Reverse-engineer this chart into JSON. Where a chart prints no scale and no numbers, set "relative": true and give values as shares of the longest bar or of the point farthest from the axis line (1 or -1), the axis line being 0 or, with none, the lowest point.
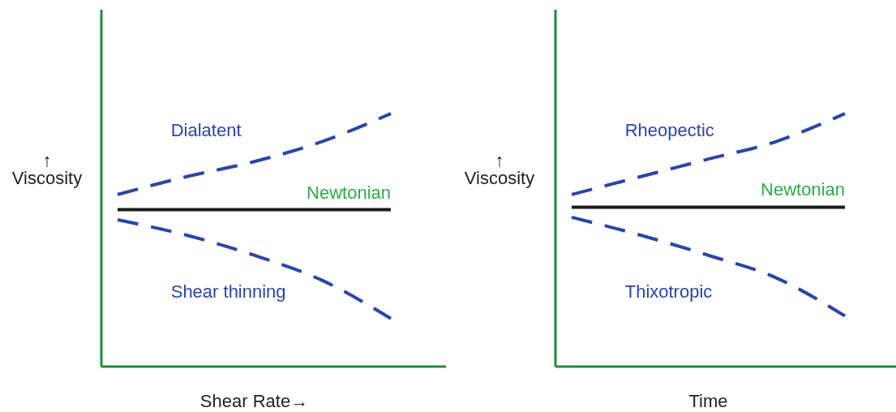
{
  "chart_data": [
    {
      "type": "line",
      "relative": true,
      "xlabel": "Shear Rate→",
      "ylabel": "↑\nViscosity",
      "categories": [
        null,
        null,
        null,
        null,
        null
      ],
      "series": [
        {
          "name": "Dialatent",
          "color": "#2b45a6",
          "line_style": "dashed",
          "values": [
            0.68,
            0.75,
            0.81,
            0.89,
            1
          ]
        },
        {
          "name": "Newtonian",
          "color": "#1a1a1a",
          "line_style": "solid",
          "values": [
            0.62,
            0.62,
            0.62,
            0.62,
            0.62
          ]
        },
        {
          "name": "Shear thinning",
          "color": "#2b45a6",
          "line_style": "dashed",
          "values": [
            0.58,
            0.52,
            0.44,
            0.34,
            0.19
          ]
        }
      ]
    },
    {
      "type": "line",
      "relative": true,
      "xlabel": "Time",
      "ylabel": "↑\nViscosity",
      "categories": [
        null,
        null,
        null,
        null,
        null
      ],
      "series": [
        {
          "name": "Rheopectic",
          "color": "#2b45a6",
          "line_style": "dashed",
          "values": [
            0.68,
            0.75,
            0.82,
            0.89,
            1
          ]
        },
        {
          "name": "Newtonian",
          "color": "#1a1a1a",
          "line_style": "solid",
          "values": [
            0.63,
            0.63,
            0.63,
            0.63,
            0.63
          ]
        },
        {
          "name": "Thixotropic",
          "color": "#2b45a6",
          "line_style": "dashed",
          "values": [
            0.59,
            0.52,
            0.44,
            0.35,
            0.2
          ]
        }
      ]
    }
  ]
}
